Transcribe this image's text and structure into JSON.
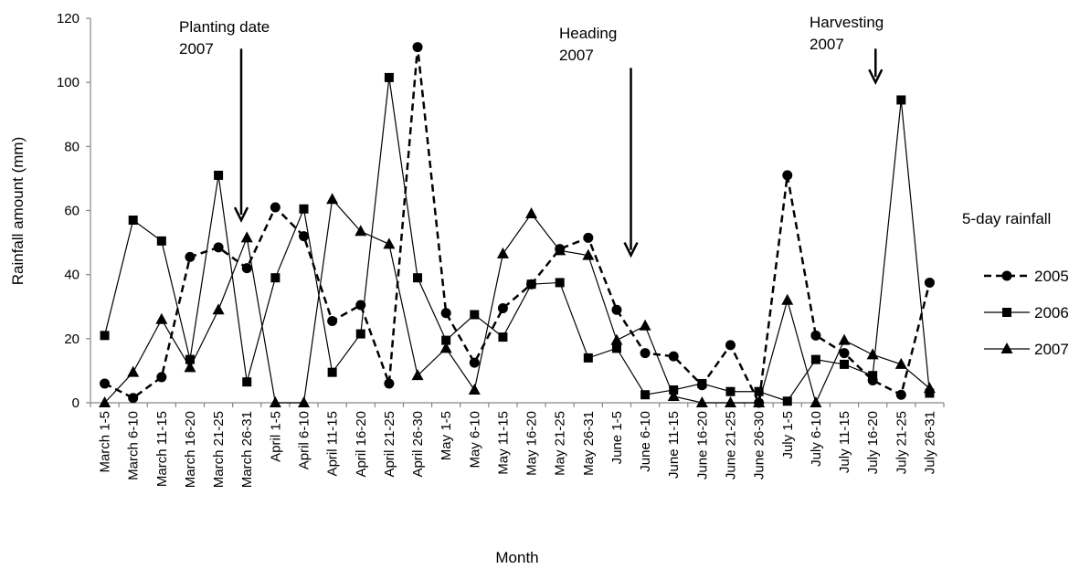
{
  "chart_data": {
    "type": "line",
    "title": "",
    "xlabel": "Month",
    "ylabel": "Rainfall amount (mm)",
    "ylim": [
      0,
      120
    ],
    "yticks": [
      0,
      20,
      40,
      60,
      80,
      100,
      120
    ],
    "grid": false,
    "legend_position": "right",
    "legend_title": "5-day rainfall",
    "categories": [
      "March 1-5",
      "March 6-10",
      "March 11-15",
      "March 16-20",
      "March 21-25",
      "March 26-31",
      "April 1-5",
      "April 6-10",
      "April 11-15",
      "April 16-20",
      "April 21-25",
      "April 26-30",
      "May 1-5",
      "May 6-10",
      "May 11-15",
      "May 16-20",
      "May 21-25",
      "May 26-31",
      "June 1-5",
      "June 6-10",
      "June 11-15",
      "June 16-20",
      "June 21-25",
      "June 26-30",
      "July 1-5",
      "July 6-10",
      "July 11-15",
      "July 16-20",
      "July 21-25",
      "July 26-31"
    ],
    "series": [
      {
        "name": "2005",
        "marker": "circle",
        "dashed": true,
        "values": [
          6,
          1.5,
          8,
          45.5,
          48.5,
          42,
          61,
          52,
          25.5,
          30.5,
          6,
          111,
          28,
          12.5,
          29.5,
          37,
          48,
          51.5,
          29,
          15.5,
          14.5,
          5.5,
          18,
          0,
          71,
          21,
          15.5,
          7,
          2.5,
          37.5
        ]
      },
      {
        "name": "2006",
        "marker": "square",
        "dashed": false,
        "values": [
          21,
          57,
          50.5,
          13.5,
          71,
          6.5,
          39,
          60.5,
          9.5,
          21.5,
          101.5,
          39,
          19.5,
          27.5,
          20.5,
          37,
          37.5,
          14,
          17,
          2.5,
          4,
          6,
          3.5,
          3.5,
          0.5,
          13.5,
          12,
          8.5,
          94.5,
          3
        ]
      },
      {
        "name": "2007",
        "marker": "triangle",
        "dashed": false,
        "values": [
          0,
          9.5,
          26,
          11,
          29,
          51.5,
          0,
          0,
          63.5,
          53.5,
          49.5,
          8.5,
          17,
          4,
          46.5,
          59,
          47.5,
          46,
          19.5,
          24,
          2,
          0,
          0,
          0,
          32,
          0,
          19.5,
          15,
          12,
          4.5
        ]
      }
    ],
    "annotations": [
      {
        "text_lines": [
          "Planting date",
          "2007"
        ],
        "category_index": 5.3,
        "arrow_from_y": 110.5,
        "arrow_to_y": 57
      },
      {
        "text_lines": [
          "Heading",
          "2007"
        ],
        "category_index": 19.0,
        "arrow_from_y": 104.5,
        "arrow_to_y": 46
      },
      {
        "text_lines": [
          "Harvesting",
          "2007"
        ],
        "category_index": 27.6,
        "arrow_from_y": 110.5,
        "arrow_to_y": 100
      }
    ]
  }
}
